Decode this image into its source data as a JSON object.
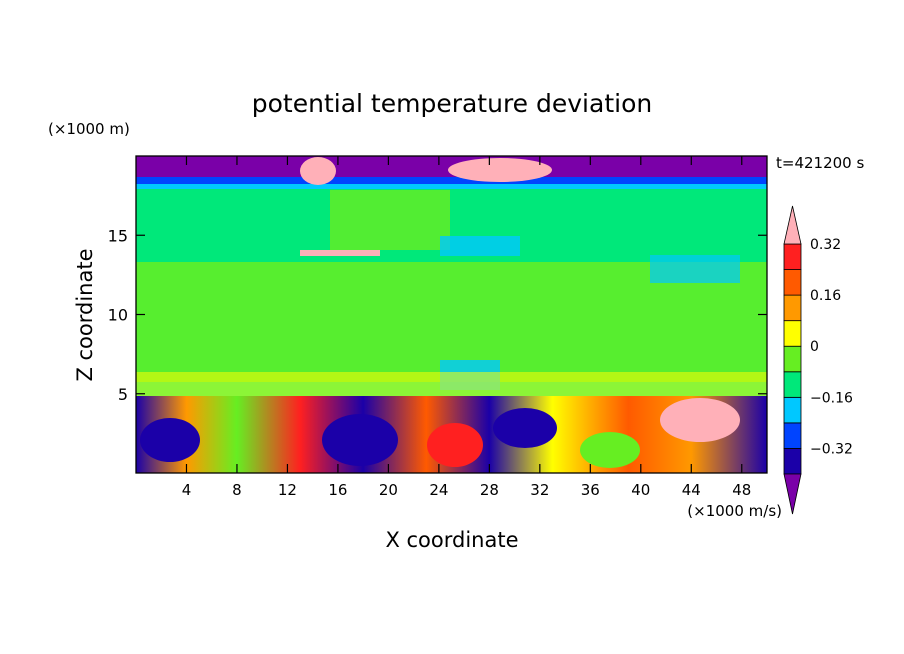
{
  "chart_data": {
    "type": "heatmap",
    "title": "potential temperature deviation",
    "xlabel": "X coordinate",
    "ylabel": "Z coordinate",
    "x_unit": "(×1000 m/s)",
    "y_unit": "(×1000 m)",
    "time_label": "t=421200 s",
    "xlim": [
      0,
      50
    ],
    "ylim": [
      0,
      20
    ],
    "x_ticks": [
      4,
      8,
      12,
      16,
      20,
      24,
      28,
      32,
      36,
      40,
      44,
      48
    ],
    "y_ticks": [
      5,
      10,
      15
    ],
    "colorbar": {
      "levels": [
        -0.4,
        -0.32,
        -0.24,
        -0.16,
        -0.08,
        0,
        0.08,
        0.16,
        0.24,
        0.32,
        0.4
      ],
      "labels": [
        "0.32",
        "0.16",
        "0",
        "−0.16",
        "−0.32"
      ],
      "label_values": [
        0.32,
        0.16,
        0,
        -0.16,
        -0.32
      ],
      "colors": [
        "#7a00a8",
        "#1b00a8",
        "#0044ff",
        "#00c8ff",
        "#00e87a",
        "#66ee22",
        "#ffff00",
        "#ff9900",
        "#ff5a00",
        "#ff2020",
        "#ffb0b8"
      ]
    },
    "regions": [
      {
        "z": [
          0,
          4.8
        ],
        "description_level": "mixed",
        "mean": 0.0
      },
      {
        "z": [
          4.8,
          18.3
        ],
        "description_level": "near zero",
        "mean": 0.02
      },
      {
        "z": [
          18.3,
          19.5
        ],
        "description_level": "strong negative",
        "mean": -0.38
      }
    ]
  }
}
